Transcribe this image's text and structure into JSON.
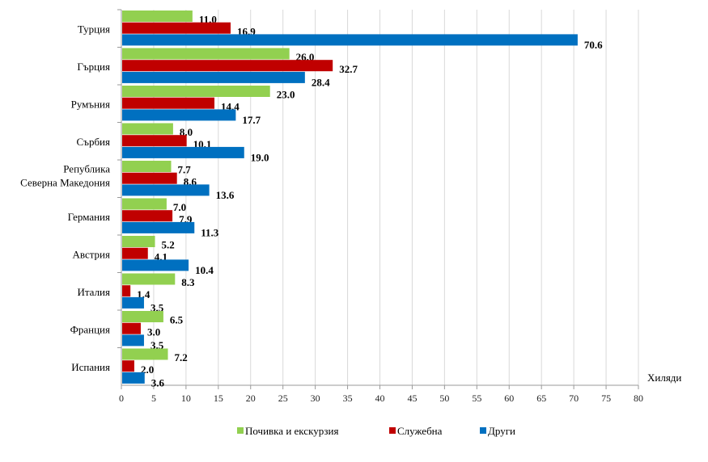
{
  "chart_data": {
    "type": "bar",
    "orientation": "horizontal",
    "categories": [
      "Турция",
      "Гърция",
      "Румъния",
      "Сърбия",
      [
        "Република",
        "Северна Македония"
      ],
      "Германия",
      "Австрия",
      "Италия",
      "Франция",
      "Испания"
    ],
    "series": [
      {
        "name": "Почивка и екскурзия",
        "color": "#92d050",
        "values": [
          11.0,
          26.0,
          23.0,
          8.0,
          7.7,
          7.0,
          5.2,
          8.3,
          6.5,
          7.2
        ]
      },
      {
        "name": "Служебна",
        "color": "#c00000",
        "values": [
          16.9,
          32.7,
          14.4,
          10.1,
          8.6,
          7.9,
          4.1,
          1.4,
          3.0,
          2.0
        ]
      },
      {
        "name": "Други",
        "color": "#0070c0",
        "values": [
          70.6,
          28.4,
          17.7,
          19.0,
          13.6,
          11.3,
          10.4,
          3.5,
          3.5,
          3.6
        ]
      }
    ],
    "xlim": [
      0,
      80
    ],
    "xticks": [
      0,
      5,
      10,
      15,
      20,
      25,
      30,
      35,
      40,
      45,
      50,
      55,
      60,
      65,
      70,
      75,
      80
    ],
    "xlabel": "Хиляди",
    "ylabel": "",
    "title": "",
    "grid": "vertical",
    "legend": "bottom-center"
  }
}
